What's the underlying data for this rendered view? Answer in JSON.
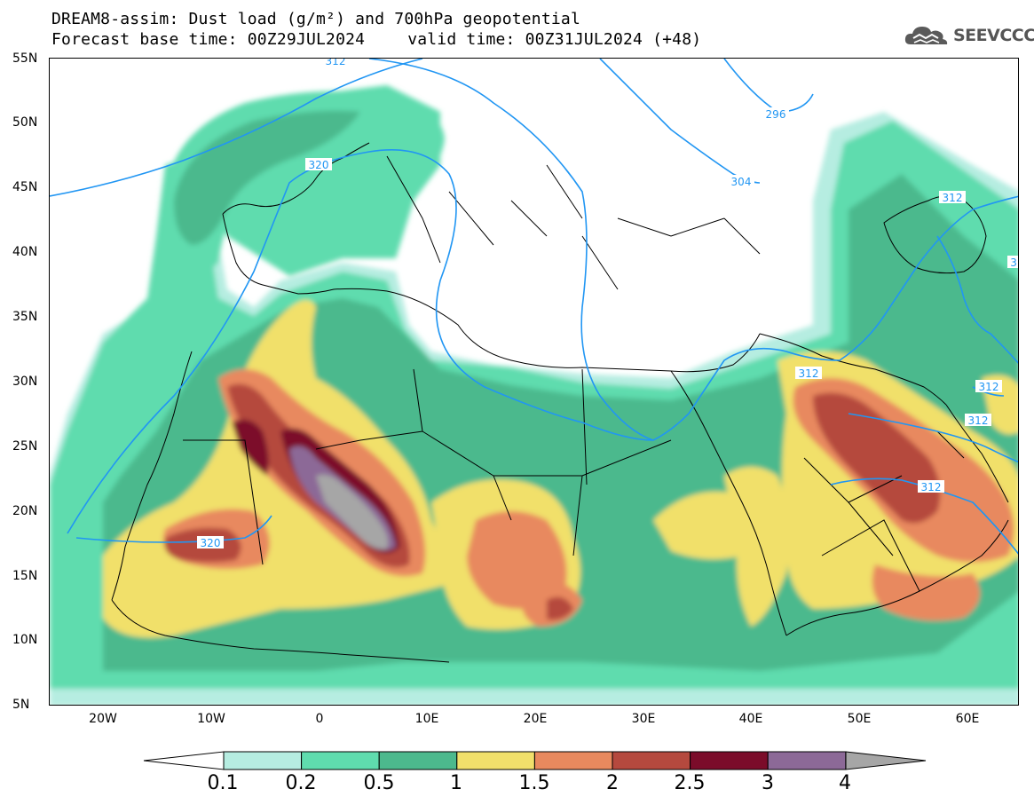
{
  "title": {
    "line1": "DREAM8-assim: Dust load (g/m²) and 700hPa geopotential",
    "line2_base": "Forecast base time: 00Z29JUL2024",
    "line2_valid": "valid time: 00Z31JUL2024 (+48)"
  },
  "logo": {
    "text": "SEEVCCC",
    "icon": "cloud-logo-icon",
    "color": "#555555"
  },
  "axes": {
    "lat_labels": [
      "55N",
      "50N",
      "45N",
      "40N",
      "35N",
      "30N",
      "25N",
      "20N",
      "15N",
      "10N",
      "5N"
    ],
    "lon_labels": [
      "20W",
      "10W",
      "0",
      "10E",
      "20E",
      "30E",
      "40E",
      "50E",
      "60E"
    ]
  },
  "contour_labels": [
    "312",
    "296",
    "320",
    "304",
    "312",
    "312",
    "312",
    "312",
    "312",
    "320",
    "3"
  ],
  "colorbar": {
    "labels": [
      "0.1",
      "0.2",
      "0.5",
      "1",
      "1.5",
      "2",
      "2.5",
      "3",
      "4"
    ],
    "colors": [
      "#b6ede1",
      "#5fdcae",
      "#4cb98d",
      "#f1e06b",
      "#e8895e",
      "#b5493e",
      "#7b0c2a",
      "#8c6997",
      "#a6a6a6"
    ]
  },
  "colors": {
    "ocean": "#ffffff",
    "contour": "#2196f3",
    "coast": "#000000"
  }
}
